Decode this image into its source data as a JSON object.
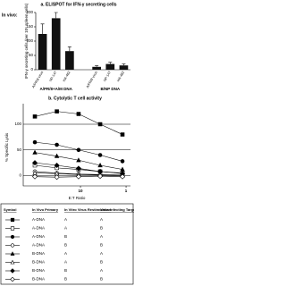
{
  "chart_data": [
    {
      "type": "bar",
      "title": "a.  ELISPOT for IFN-γ secreting cells",
      "ylabel": "IFN-γ secreting cells (per 10⁶ spleen cells)",
      "annotation": "In vivo:",
      "color": "#111111",
      "ylim": [
        0,
        200
      ],
      "yticks": [
        0,
        50,
        100,
        150,
        200
      ],
      "groups": [
        {
          "name": "A/PR/8+A/M DNA",
          "categories": [
            "A/PR/8 virus",
            "NP-147",
            "HA-462"
          ],
          "values": [
            125,
            180,
            65
          ],
          "errors": [
            35,
            20,
            15
          ]
        },
        {
          "name": "B/NP DNA",
          "categories": [
            "A/PR/8 virus",
            "NP-147",
            "HA-462"
          ],
          "values": [
            10,
            20,
            15
          ],
          "errors": [
            4,
            6,
            5
          ]
        }
      ]
    },
    {
      "type": "line",
      "title": "b.  Cytolytic T cell activity",
      "xlabel": "E:T Ratio",
      "ylabel": "% Specific Lysis",
      "x": [
        100,
        33,
        11,
        3.7,
        1.2
      ],
      "xlim": [
        180,
        0.8
      ],
      "xlog": true,
      "xticks": [
        10,
        1
      ],
      "ylim": [
        -20,
        140
      ],
      "yticks": [
        0,
        50,
        100
      ],
      "series": [
        {
          "name": "A-DNA A A",
          "marker": "square-filled",
          "values": [
            115,
            125,
            120,
            100,
            80
          ]
        },
        {
          "name": "A-DNA A B",
          "marker": "square-open",
          "values": [
            20,
            15,
            12,
            8,
            5
          ]
        },
        {
          "name": "A-DNA B A",
          "marker": "circle-filled",
          "values": [
            65,
            60,
            50,
            40,
            28
          ]
        },
        {
          "name": "A-DNA B B",
          "marker": "circle-open",
          "values": [
            8,
            5,
            3,
            2,
            1
          ]
        },
        {
          "name": "B-DNA A A",
          "marker": "triangle-filled",
          "values": [
            45,
            38,
            30,
            20,
            12
          ]
        },
        {
          "name": "B-DNA A B",
          "marker": "triangle-open",
          "values": [
            5,
            4,
            2,
            1,
            0
          ]
        },
        {
          "name": "B-DNA B A",
          "marker": "diamond-filled",
          "values": [
            25,
            20,
            14,
            8,
            4
          ]
        },
        {
          "name": "B-DNA B B",
          "marker": "diamond-open",
          "values": [
            -2,
            -3,
            -2,
            -1,
            -2
          ]
        }
      ]
    }
  ],
  "table": {
    "header": [
      "Symbol",
      "In Vivo Primary",
      "In Vitro Virus Restimulation",
      "Virus Infecting Target"
    ],
    "rows": [
      [
        "A-DNA",
        "A",
        "A"
      ],
      [
        "A-DNA",
        "A",
        "B"
      ],
      [
        "A-DNA",
        "B",
        "A"
      ],
      [
        "A-DNA",
        "B",
        "B"
      ],
      [
        "B-DNA",
        "A",
        "A"
      ],
      [
        "B-DNA",
        "A",
        "B"
      ],
      [
        "B-DNA",
        "B",
        "A"
      ],
      [
        "B-DNA",
        "B",
        "B"
      ]
    ]
  }
}
